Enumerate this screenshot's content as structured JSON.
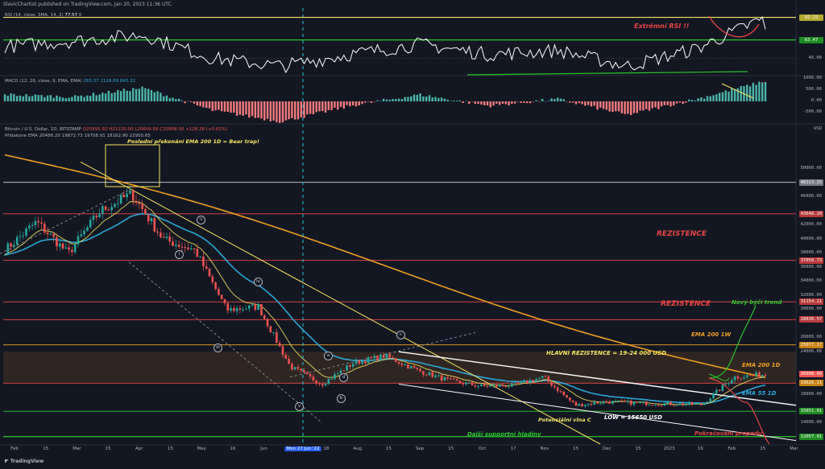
{
  "header": {
    "publisher": "SlavicChartist published on TradingView.com, Jan 20, 2023 11:36 UTC",
    "rsi_legend": "RSI (14, close, SMA, 14, 2)",
    "rsi_value": "77.57",
    "rsi_value2": "0",
    "macd_legend": "MACD (12, 26, close, 9, EMA, EMA)",
    "macd_values": "283.37  1128.89  845.32",
    "price_legend": "Bitcoin / U.S. Dollar, 1D, BITSTAMP",
    "price_ohlc": "O20995.92  H21220.00  L20609.58  C20908.00  +128.28 (+0.61%)",
    "ema_legend": "Přidakone EMA  20486.20  19872.73  19708.91  18162.90  22950.65"
  },
  "footer": {
    "brand": "TradingView"
  },
  "x_axis": [
    "Feb",
    "15",
    "Mar",
    "15",
    "Apr",
    "15",
    "May",
    "16",
    "Jun",
    "15",
    "18",
    "Aug",
    "15",
    "Sep",
    "15",
    "Oct",
    "17",
    "Nov",
    "15",
    "Dec",
    "15",
    "2023",
    "16",
    "Feb",
    "15",
    "Mar"
  ],
  "cursor_date": "Mon 27 Jun '22",
  "y_axis": {
    "rsi_labels": [
      "92.25",
      "63.47",
      "40.00"
    ],
    "macd_labels": [
      "1000.00",
      "500.00",
      "0.00",
      "-500.00"
    ],
    "price_unit": "USD",
    "price_labels": [
      "50000.00",
      "48113.25",
      "46000.00",
      "43648.20",
      "42000.00",
      "40000.00",
      "38000.00",
      "37050.73",
      "36000.00",
      "34000.00",
      "32000.00",
      "31154.21",
      "30000.00",
      "28630.57",
      "26000.00",
      "25077.17",
      "24000.00",
      "20908.00",
      "19626.11",
      "18000.00",
      "15651.01",
      "14000.00",
      "12000.00",
      "12057.01"
    ]
  },
  "annotations": {
    "bear_trap": "Poslední překonání EMA 200 1D = Bear trap!",
    "extreme_rsi": "Extrémní RSI !!",
    "resistance_1": "REZISTENCE",
    "resistance_2": "REZISTENCE",
    "new_trend": "Nový býčí trend",
    "ema200w": "EMA 200 1W",
    "main_res": "HLAVNÍ REZISTENCE = 19-24 000 USD",
    "ema200d": "EMA 200 1D",
    "ema55d": "EMA 55 1D",
    "wave_c": "Potenciální vlna C",
    "low": "LOW = 15650 USD",
    "continuation": "Pokračování propadu",
    "support": "Další supportní hladiny",
    "waves": [
      "i",
      "ii",
      "iii",
      "iv",
      "v",
      "a",
      "b",
      "c",
      "d"
    ]
  },
  "colors": {
    "bg": "#131722",
    "up": "#26a69a",
    "down": "#ef5350",
    "ema20": "#f5e663",
    "ema55": "#2aa7d6",
    "ema200": "#f0a020",
    "resist": "#e64545",
    "support": "#29c72c",
    "rsi": "#ffffff"
  },
  "chart_data": [
    {
      "type": "line",
      "panel": "RSI",
      "x": [
        "Feb",
        "Mar",
        "Apr",
        "May",
        "Jun",
        "Jul",
        "Aug",
        "Sep",
        "Oct",
        "Nov",
        "Dec",
        "2023 Jan"
      ],
      "series": [
        {
          "values": [
            55,
            62,
            70,
            40,
            30,
            45,
            58,
            45,
            50,
            30,
            52,
            92
          ]
        }
      ],
      "levels": [
        92.25,
        63.47,
        40
      ]
    },
    {
      "type": "bar",
      "panel": "MACD",
      "x": [
        "Feb",
        "Mar",
        "Apr",
        "May",
        "Jun",
        "Jul",
        "Aug",
        "Sep",
        "Oct",
        "Nov",
        "Dec",
        "2023 Jan"
      ],
      "values": [
        300,
        200,
        600,
        -400,
        -900,
        -200,
        300,
        -200,
        100,
        -600,
        100,
        900
      ]
    },
    {
      "type": "line",
      "panel": "Price",
      "x": [
        "Feb",
        "15",
        "Mar",
        "15",
        "Apr",
        "15",
        "May",
        "16",
        "Jun",
        "15",
        "Jul",
        "18",
        "Aug",
        "15",
        "Sep",
        "15",
        "Oct",
        "17",
        "Nov",
        "15",
        "Dec",
        "15",
        "2023",
        "16",
        "Jan 20"
      ],
      "series": [
        {
          "values": [
            38500,
            42500,
            38000,
            44000,
            46500,
            40000,
            38500,
            30000,
            30500,
            22000,
            19500,
            22500,
            23500,
            21500,
            20000,
            19200,
            19300,
            20500,
            16500,
            17000,
            16800,
            16700,
            16600,
            20500,
            20908
          ]
        }
      ],
      "levels": [
        48113.25,
        43648.2,
        37050.73,
        31154.21,
        28630.57,
        25077.17,
        19626.11,
        15651.01,
        12057.01
      ],
      "ylim": [
        11000,
        54000
      ]
    }
  ]
}
